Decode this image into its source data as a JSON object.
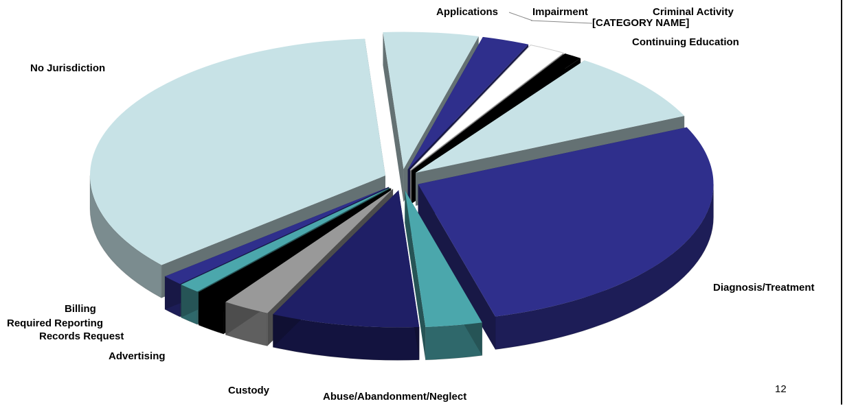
{
  "page_number": "12",
  "chart_data": {
    "type": "pie",
    "exploded": true,
    "three_d": true,
    "title": "",
    "slices": [
      {
        "label": "Applications",
        "value": 5.2,
        "color": "#c7e2e6"
      },
      {
        "label": "Impairment",
        "value": 2.6,
        "color": "#2f2f8c"
      },
      {
        "label": "[CATEGORY NAME]",
        "value": 2.0,
        "color": "#ffffff"
      },
      {
        "label": "Criminal Activity",
        "value": 1.0,
        "color": "#000000"
      },
      {
        "label": "Continuing Education",
        "value": 8.5,
        "color": "#c7e2e6"
      },
      {
        "label": "Diagnosis/Treatment",
        "value": 27.6,
        "color": "#2f2f8c"
      },
      {
        "label": "Abuse/Abandonment/Neglect",
        "value": 3.1,
        "color": "#4ba7ac"
      },
      {
        "label": "Custody",
        "value": 8.1,
        "color": "#1f1f66"
      },
      {
        "label": "Advertising",
        "value": 2.6,
        "color": "#999999"
      },
      {
        "label": "Records Request",
        "value": 1.7,
        "color": "#000000"
      },
      {
        "label": "Required Reporting",
        "value": 1.2,
        "color": "#4ba7ac"
      },
      {
        "label": "Billing",
        "value": 1.2,
        "color": "#2f2f8c"
      },
      {
        "label": "No Jurisdiction",
        "value": 35.2,
        "color": "#c7e2e6"
      }
    ]
  }
}
